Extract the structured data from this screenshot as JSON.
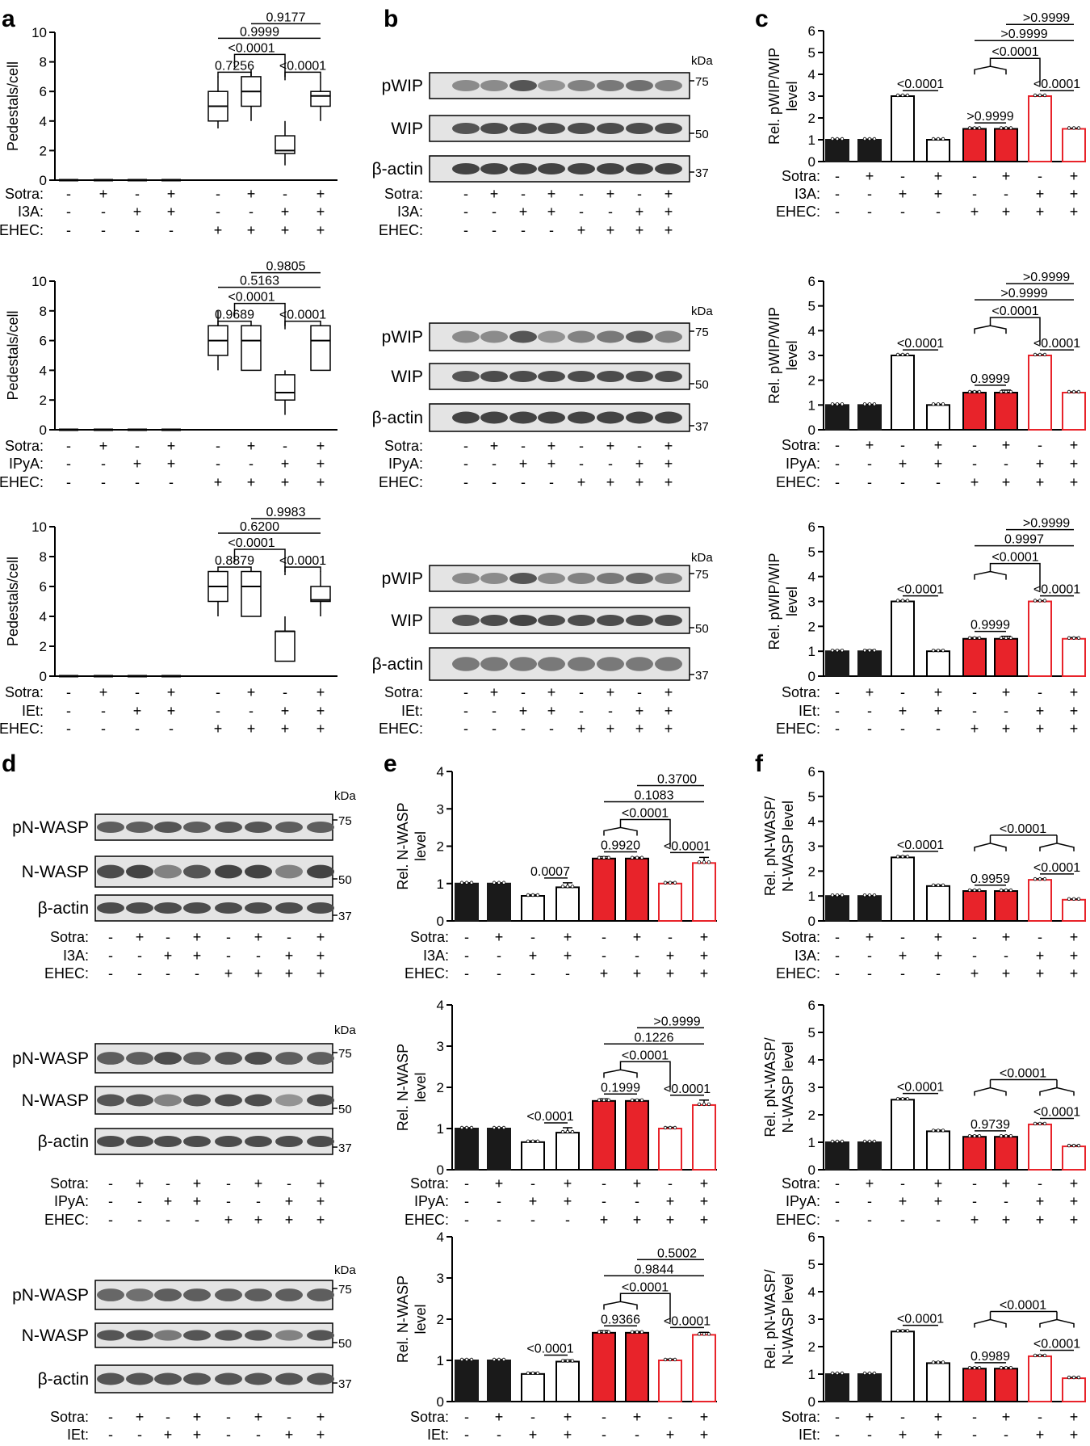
{
  "panel_labels": [
    "a",
    "b",
    "c",
    "d",
    "e",
    "f"
  ],
  "row_labels": {
    "sotra": "Sotra:",
    "ehec": "EHEC:",
    "i3a": "I3A:",
    "ipya": "IPyA:",
    "iet": "IEt:"
  },
  "condition_signs": {
    "sotra": [
      "-",
      "+",
      "-",
      "+",
      "-",
      "+",
      "-",
      "+"
    ],
    "treatment": [
      "-",
      "-",
      "+",
      "+",
      "-",
      "-",
      "+",
      "+"
    ],
    "ehec": [
      "-",
      "-",
      "-",
      "-",
      "+",
      "+",
      "+",
      "+"
    ]
  },
  "blot_text": {
    "kda": "kDa",
    "pwip": "pWIP",
    "wip": "WIP",
    "bactin": "β-actin",
    "pnwasp": "pN-WASP",
    "nwasp": "N-WASP",
    "m75": "75",
    "m50": "50",
    "m37": "37"
  },
  "colors": {
    "black_bar": "#1a1a1a",
    "red": "#e8232a",
    "white_bar": "#ffffff"
  },
  "chart_data": [
    {
      "id": "a1",
      "type": "box",
      "panel": "a",
      "treatment": "I3A",
      "ylabel": "Pedestals/cell",
      "ylim": [
        0,
        10
      ],
      "yticks": [
        0,
        2,
        4,
        6,
        8,
        10
      ],
      "boxes": [
        {
          "min": 0,
          "q1": 0,
          "med": 0,
          "q3": 0,
          "max": 0
        },
        {
          "min": 0,
          "q1": 0,
          "med": 0,
          "q3": 0,
          "max": 0
        },
        {
          "min": 0,
          "q1": 0,
          "med": 0,
          "q3": 0,
          "max": 0
        },
        {
          "min": 0,
          "q1": 0,
          "med": 0,
          "q3": 0,
          "max": 0
        },
        {
          "min": 3.5,
          "q1": 4,
          "med": 5,
          "q3": 6,
          "max": 7
        },
        {
          "min": 4,
          "q1": 5,
          "med": 6,
          "q3": 7,
          "max": 7.5
        },
        {
          "min": 1,
          "q1": 1.8,
          "med": 2,
          "q3": 3,
          "max": 4
        },
        {
          "min": 4,
          "q1": 5,
          "med": 5.7,
          "q3": 6,
          "max": 7
        }
      ],
      "stats": {
        "pair": "0.7256",
        "pair2": "<0.0001",
        "group": "<0.0001",
        "span1": "0.9999",
        "span2": "0.9177"
      }
    },
    {
      "id": "a2",
      "type": "box",
      "panel": "a",
      "treatment": "IPyA",
      "ylabel": "Pedestals/cell",
      "ylim": [
        0,
        10
      ],
      "yticks": [
        0,
        2,
        4,
        6,
        8,
        10
      ],
      "boxes": [
        {
          "min": 0,
          "q1": 0,
          "med": 0,
          "q3": 0,
          "max": 0
        },
        {
          "min": 0,
          "q1": 0,
          "med": 0,
          "q3": 0,
          "max": 0
        },
        {
          "min": 0,
          "q1": 0,
          "med": 0,
          "q3": 0,
          "max": 0
        },
        {
          "min": 0,
          "q1": 0,
          "med": 0,
          "q3": 0,
          "max": 0
        },
        {
          "min": 4,
          "q1": 5,
          "med": 6,
          "q3": 7,
          "max": 8
        },
        {
          "min": 4,
          "q1": 4,
          "med": 6,
          "q3": 7,
          "max": 7
        },
        {
          "min": 1,
          "q1": 2,
          "med": 2.5,
          "q3": 3.7,
          "max": 4
        },
        {
          "min": 4,
          "q1": 4,
          "med": 6,
          "q3": 7,
          "max": 7
        }
      ],
      "stats": {
        "pair": "0.9689",
        "pair2": "<0.0001",
        "group": "<0.0001",
        "span1": "0.5163",
        "span2": "0.9805"
      }
    },
    {
      "id": "a3",
      "type": "box",
      "panel": "a",
      "treatment": "IEt",
      "ylabel": "Pedestals/cell",
      "ylim": [
        0,
        10
      ],
      "yticks": [
        0,
        2,
        4,
        6,
        8,
        10
      ],
      "boxes": [
        {
          "min": 0,
          "q1": 0,
          "med": 0,
          "q3": 0,
          "max": 0
        },
        {
          "min": 0,
          "q1": 0,
          "med": 0,
          "q3": 0,
          "max": 0
        },
        {
          "min": 0,
          "q1": 0,
          "med": 0,
          "q3": 0,
          "max": 0
        },
        {
          "min": 0,
          "q1": 0,
          "med": 0,
          "q3": 0,
          "max": 0
        },
        {
          "min": 4,
          "q1": 5,
          "med": 6,
          "q3": 7,
          "max": 7
        },
        {
          "min": 4,
          "q1": 4,
          "med": 6,
          "q3": 7,
          "max": 7
        },
        {
          "min": 1,
          "q1": 1,
          "med": 3,
          "q3": 3,
          "max": 4
        },
        {
          "min": 4,
          "q1": 5,
          "med": 5.1,
          "q3": 6,
          "max": 7
        }
      ],
      "stats": {
        "pair": "0.8879",
        "pair2": "<0.0001",
        "group": "<0.0001",
        "span1": "0.6200",
        "span2": "0.9983"
      }
    },
    {
      "id": "c1",
      "type": "bar",
      "panel": "c",
      "treatment": "I3A",
      "ylabel": [
        "Rel. pWIP/WIP",
        "level"
      ],
      "ylim": [
        0,
        6
      ],
      "yticks": [
        0,
        1,
        2,
        3,
        4,
        5,
        6
      ],
      "values": [
        1,
        1,
        3,
        1,
        1.5,
        1.5,
        3,
        1.5
      ],
      "errors": [
        0.03,
        0.03,
        0.03,
        0.03,
        0.05,
        0.05,
        0.03,
        0.03
      ],
      "stats": {
        "single": "<0.0001",
        "pair": ">0.9999",
        "pair2": "<0.0001",
        "group": "<0.0001",
        "span1": ">0.9999",
        "span2": ">0.9999"
      }
    },
    {
      "id": "c2",
      "type": "bar",
      "panel": "c",
      "treatment": "IPyA",
      "ylabel": [
        "Rel. pWIP/WIP",
        "level"
      ],
      "ylim": [
        0,
        6
      ],
      "yticks": [
        0,
        1,
        2,
        3,
        4,
        5,
        6
      ],
      "values": [
        1,
        1,
        3,
        1,
        1.5,
        1.5,
        3,
        1.5
      ],
      "errors": [
        0.03,
        0.03,
        0.03,
        0.03,
        0.05,
        0.1,
        0.03,
        0.03
      ],
      "stats": {
        "single": "<0.0001",
        "pair": "0.9999",
        "pair2": "<0.0001",
        "group": "<0.0001",
        "span1": ">0.9999",
        "span2": ">0.9999"
      }
    },
    {
      "id": "c3",
      "type": "bar",
      "panel": "c",
      "treatment": "IEt",
      "ylabel": [
        "Rel. pWIP/WIP",
        "level"
      ],
      "ylim": [
        0,
        6
      ],
      "yticks": [
        0,
        1,
        2,
        3,
        4,
        5,
        6
      ],
      "values": [
        1,
        1,
        3,
        1,
        1.5,
        1.5,
        3,
        1.5
      ],
      "errors": [
        0.03,
        0.05,
        0.03,
        0.03,
        0.05,
        0.1,
        0.03,
        0.05
      ],
      "stats": {
        "single": "<0.0001",
        "pair": "0.9999",
        "pair2": "<0.0001",
        "group": "<0.0001",
        "span1": "0.9997",
        "span2": ">0.9999"
      }
    },
    {
      "id": "e1",
      "type": "bar",
      "panel": "e",
      "treatment": "I3A",
      "ylabel": [
        "Rel. N-WASP",
        "level"
      ],
      "ylim": [
        0,
        4
      ],
      "yticks": [
        0,
        1,
        2,
        3,
        4
      ],
      "values": [
        1,
        1,
        0.67,
        0.9,
        1.67,
        1.67,
        1.0,
        1.55
      ],
      "errors": [
        0.02,
        0.02,
        0.03,
        0.12,
        0.05,
        0.03,
        0.03,
        0.15
      ],
      "stats": {
        "single": "0.0007",
        "pair": "0.9920",
        "pair2": "<0.0001",
        "group": "<0.0001",
        "span1": "0.1083",
        "span2": "0.3700"
      }
    },
    {
      "id": "e2",
      "type": "bar",
      "panel": "e",
      "treatment": "IPyA",
      "ylabel": [
        "Rel. N-WASP",
        "level"
      ],
      "ylim": [
        0,
        4
      ],
      "yticks": [
        0,
        1,
        2,
        3,
        4
      ],
      "values": [
        1,
        1,
        0.67,
        0.9,
        1.67,
        1.67,
        1.0,
        1.57
      ],
      "errors": [
        0.02,
        0.02,
        0.03,
        0.12,
        0.05,
        0.03,
        0.03,
        0.12
      ],
      "stats": {
        "single": "<0.0001",
        "pair": "0.1999",
        "pair2": "<0.0001",
        "group": "<0.0001",
        "span1": "0.1226",
        "span2": ">0.9999"
      }
    },
    {
      "id": "e3",
      "type": "bar",
      "panel": "e",
      "treatment": "IEt",
      "ylabel": [
        "Rel. N-WASP",
        "level"
      ],
      "ylim": [
        0,
        4
      ],
      "yticks": [
        0,
        1,
        2,
        3,
        4
      ],
      "values": [
        1,
        1,
        0.67,
        0.97,
        1.67,
        1.67,
        1.0,
        1.62
      ],
      "errors": [
        0.02,
        0.02,
        0.03,
        0.04,
        0.05,
        0.03,
        0.03,
        0.06
      ],
      "stats": {
        "single": "<0.0001",
        "pair": "0.9366",
        "pair2": "<0.0001",
        "group": "<0.0001",
        "span1": "0.9844",
        "span2": "0.5002"
      }
    },
    {
      "id": "f1",
      "type": "bar",
      "panel": "f",
      "treatment": "I3A",
      "ylabel": [
        "Rel. pN-WASP/",
        "N-WASP level"
      ],
      "ylim": [
        0,
        6
      ],
      "yticks": [
        0,
        1,
        2,
        3,
        4,
        5,
        6
      ],
      "values": [
        1,
        1,
        2.55,
        1.4,
        1.2,
        1.2,
        1.65,
        0.85
      ],
      "errors": [
        0.02,
        0.02,
        0.05,
        0.04,
        0.04,
        0.04,
        0.04,
        0.03
      ],
      "stats": {
        "single": "<0.0001",
        "pair": "0.9959",
        "pair2": "<0.0001",
        "group": "<0.0001"
      }
    },
    {
      "id": "f2",
      "type": "bar",
      "panel": "f",
      "treatment": "IPyA",
      "ylabel": [
        "Rel. pN-WASP/",
        "N-WASP level"
      ],
      "ylim": [
        0,
        6
      ],
      "yticks": [
        0,
        1,
        2,
        3,
        4,
        5,
        6
      ],
      "values": [
        1,
        1,
        2.55,
        1.4,
        1.2,
        1.2,
        1.65,
        0.85
      ],
      "errors": [
        0.02,
        0.02,
        0.05,
        0.04,
        0.04,
        0.04,
        0.04,
        0.03
      ],
      "stats": {
        "single": "<0.0001",
        "pair": "0.9739",
        "pair2": "<0.0001",
        "group": "<0.0001"
      }
    },
    {
      "id": "f3",
      "type": "bar",
      "panel": "f",
      "treatment": "IEt",
      "ylabel": [
        "Rel. pN-WASP/",
        "N-WASP level"
      ],
      "ylim": [
        0,
        6
      ],
      "yticks": [
        0,
        1,
        2,
        3,
        4,
        5,
        6
      ],
      "values": [
        1,
        1,
        2.55,
        1.4,
        1.2,
        1.2,
        1.65,
        0.85
      ],
      "errors": [
        0.02,
        0.02,
        0.05,
        0.04,
        0.04,
        0.04,
        0.04,
        0.03
      ],
      "stats": {
        "single": "<0.0001",
        "pair": "0.9989",
        "pair2": "<0.0001",
        "group": "<0.0001"
      }
    }
  ]
}
